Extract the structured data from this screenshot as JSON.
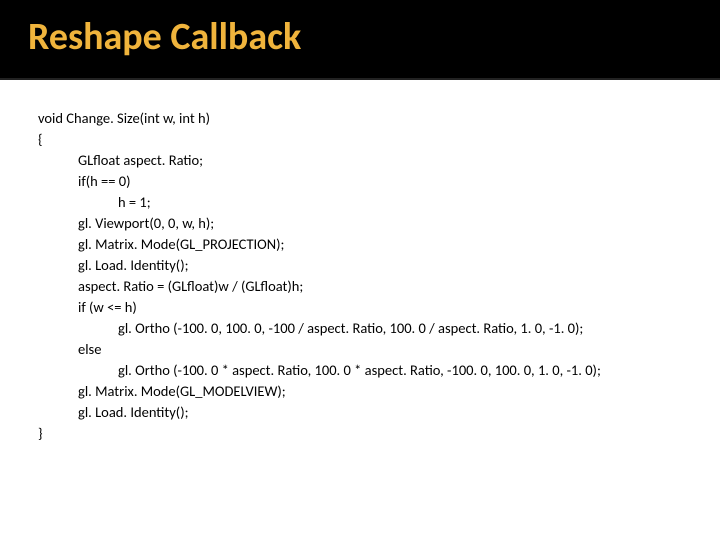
{
  "title": "Reshape Callback",
  "title_color": "#f0b43c",
  "title_bg": "#000000",
  "body_bg": "#ffffff",
  "code_color": "#000000",
  "font_family": "Calibri",
  "title_fontsize": 38,
  "code_fontsize": 14.5,
  "code": {
    "l01": "void Change. Size(int w, int h)",
    "l02": "{",
    "l03": "GLfloat aspect. Ratio;",
    "l04": "if(h == 0)",
    "l05": "h = 1;",
    "l06": "gl. Viewport(0, 0, w, h);",
    "l07": "gl. Matrix. Mode(GL_PROJECTION);",
    "l08": "gl. Load. Identity();",
    "l09": "aspect. Ratio = (GLfloat)w / (GLfloat)h;",
    "l10": "if (w <= h)",
    "l11": "gl. Ortho (-100. 0, 100. 0, -100 / aspect. Ratio, 100. 0 / aspect. Ratio, 1. 0, -1. 0);",
    "l12": "else",
    "l13": "gl. Ortho (-100. 0 * aspect. Ratio, 100. 0 * aspect. Ratio, -100. 0, 100. 0, 1. 0, -1. 0);",
    "l14": "gl. Matrix. Mode(GL_MODELVIEW);",
    "l15": "gl. Load. Identity();",
    "l16": "}"
  }
}
